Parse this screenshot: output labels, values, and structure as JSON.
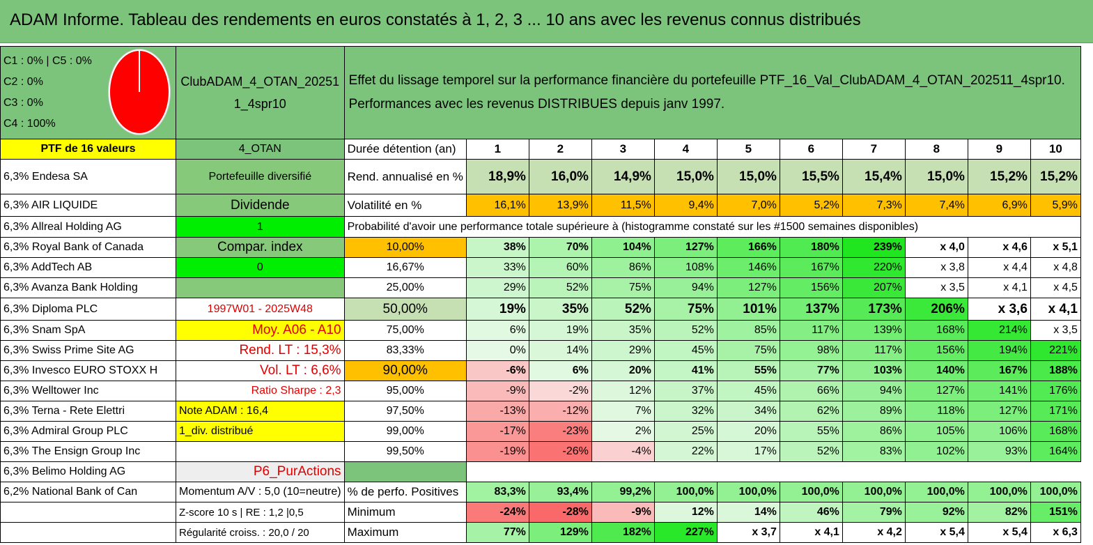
{
  "title": "ADAM Informe. Tableau des rendements en euros constatés à 1, 2, 3 ... 10 ans avec les revenus connus distribués",
  "allocation": [
    "C1 : 0% | C5 : 0%",
    "C2 : 0%",
    "C3 : 0%",
    "C4 : 100%"
  ],
  "portfolio_name": "ClubADAM_4_OTAN_202511_4spr10",
  "effect_text": "Effet du lissage temporel sur la performance financière du portefeuille PTF_16_Val_ClubADAM_4_OTAN_202511_4spr10.",
  "perf_text": "Performances avec les revenus DISTRIBUES depuis janv 1997.",
  "ptf_label": "PTF de 16 valeurs",
  "otan_label": "4_OTAN",
  "duration_label": "Durée détention (an)",
  "years": [
    "1",
    "2",
    "3",
    "4",
    "5",
    "6",
    "7",
    "8",
    "9",
    "10"
  ],
  "holdings": [
    "6,3% Endesa SA",
    "6,3% AIR LIQUIDE",
    "6,3% Allreal Holding AG",
    "6,3% Royal Bank of Canada",
    "6,3% AddTech AB",
    "6,3% Avanza Bank Holding",
    "6,3% Diploma PLC",
    "6,3% Snam SpA",
    "6,3% Swiss Prime Site AG",
    "6,3% Invesco EURO STOXX H",
    "6,3% Welltower Inc",
    "6,3% Terna - Rete Elettri",
    "6,3% Admiral Group PLC",
    "6,3% The Ensign Group Inc",
    "6,3% Belimo Holding AG",
    "6,2% National Bank of Can"
  ],
  "info": {
    "diversified": "Portefeuille diversifié",
    "dividend": "Dividende",
    "one": "1",
    "compar": "Compar. index",
    "zero": "0",
    "period": "1997W01 - 2025W48",
    "moy": "Moy. A06 - A10",
    "rend_lt": "Rend. LT : 15,3%",
    "vol_lt": "Vol. LT : 6,6%",
    "sharpe": "Ratio Sharpe : 2,3",
    "note": "Note ADAM : 16,4",
    "div": "1_div. distribué",
    "p6": "P6_PurActions",
    "momentum": "Momentum A/V : 5,0 (10=neutre)",
    "zscore": "Z-score 10 s | RE : 1,2 |0,5",
    "regularite": "Régularité croiss. : 20,0 / 20"
  },
  "rend_label": "Rend. annualisé en %",
  "rend": [
    "18,9%",
    "16,0%",
    "14,9%",
    "15,0%",
    "15,0%",
    "15,5%",
    "15,4%",
    "15,0%",
    "15,2%",
    "15,2%"
  ],
  "vol_label": "Volatilité en %",
  "vol": [
    "16,1%",
    "13,9%",
    "11,5%",
    "9,4%",
    "7,0%",
    "5,2%",
    "7,3%",
    "7,4%",
    "6,9%",
    "5,9%"
  ],
  "prob_title": "Probabilité d'avoir une performance totale supérieure à (histogramme constaté sur les #1500 semaines disponibles)",
  "prob_rows": [
    {
      "p": "10,00%",
      "v": [
        "38%",
        "70%",
        "104%",
        "127%",
        "166%",
        "180%",
        "239%",
        "x 4,0",
        "x 4,6",
        "x 5,1"
      ]
    },
    {
      "p": "16,67%",
      "v": [
        "33%",
        "60%",
        "86%",
        "108%",
        "146%",
        "167%",
        "220%",
        "x 3,8",
        "x 4,4",
        "x 4,8"
      ]
    },
    {
      "p": "25,00%",
      "v": [
        "29%",
        "52%",
        "75%",
        "94%",
        "127%",
        "156%",
        "207%",
        "x 3,5",
        "x 4,1",
        "x 4,5"
      ]
    },
    {
      "p": "50,00%",
      "v": [
        "19%",
        "35%",
        "52%",
        "75%",
        "101%",
        "137%",
        "173%",
        "206%",
        "x 3,6",
        "x 4,1"
      ]
    },
    {
      "p": "75,00%",
      "v": [
        "6%",
        "19%",
        "35%",
        "52%",
        "85%",
        "117%",
        "139%",
        "168%",
        "214%",
        "x 3,5"
      ]
    },
    {
      "p": "83,33%",
      "v": [
        "0%",
        "14%",
        "29%",
        "45%",
        "75%",
        "98%",
        "117%",
        "156%",
        "194%",
        "221%"
      ]
    },
    {
      "p": "90,00%",
      "v": [
        "-6%",
        "6%",
        "20%",
        "41%",
        "55%",
        "77%",
        "103%",
        "140%",
        "167%",
        "188%"
      ]
    },
    {
      "p": "95,00%",
      "v": [
        "-9%",
        "-2%",
        "12%",
        "37%",
        "45%",
        "66%",
        "94%",
        "127%",
        "141%",
        "176%"
      ]
    },
    {
      "p": "97,50%",
      "v": [
        "-13%",
        "-12%",
        "7%",
        "32%",
        "34%",
        "62%",
        "89%",
        "118%",
        "127%",
        "171%"
      ]
    },
    {
      "p": "99,00%",
      "v": [
        "-17%",
        "-23%",
        "2%",
        "25%",
        "20%",
        "55%",
        "86%",
        "105%",
        "106%",
        "168%"
      ]
    },
    {
      "p": "99,50%",
      "v": [
        "-19%",
        "-26%",
        "-4%",
        "22%",
        "17%",
        "52%",
        "83%",
        "102%",
        "93%",
        "164%"
      ]
    }
  ],
  "pos_label": "% de perfo. Positives",
  "pos": [
    "83,3%",
    "93,4%",
    "99,2%",
    "100,0%",
    "100,0%",
    "100,0%",
    "100,0%",
    "100,0%",
    "100,0%",
    "100,0%"
  ],
  "min_label": "Minimum",
  "min": [
    "-24%",
    "-28%",
    "-9%",
    "12%",
    "14%",
    "46%",
    "79%",
    "92%",
    "82%",
    "151%"
  ],
  "max_label": "Maximum",
  "max": [
    "77%",
    "129%",
    "182%",
    "227%",
    "x 3,7",
    "x 4,1",
    "x 4,2",
    "x 5,4",
    "x 5,4",
    "x 6,3"
  ],
  "colors": {
    "header_green": "#7cc47c",
    "yellow": "#ffff00",
    "orange": "#ffc000",
    "bright_green": "#00ee00",
    "red_text": "#e00000"
  }
}
